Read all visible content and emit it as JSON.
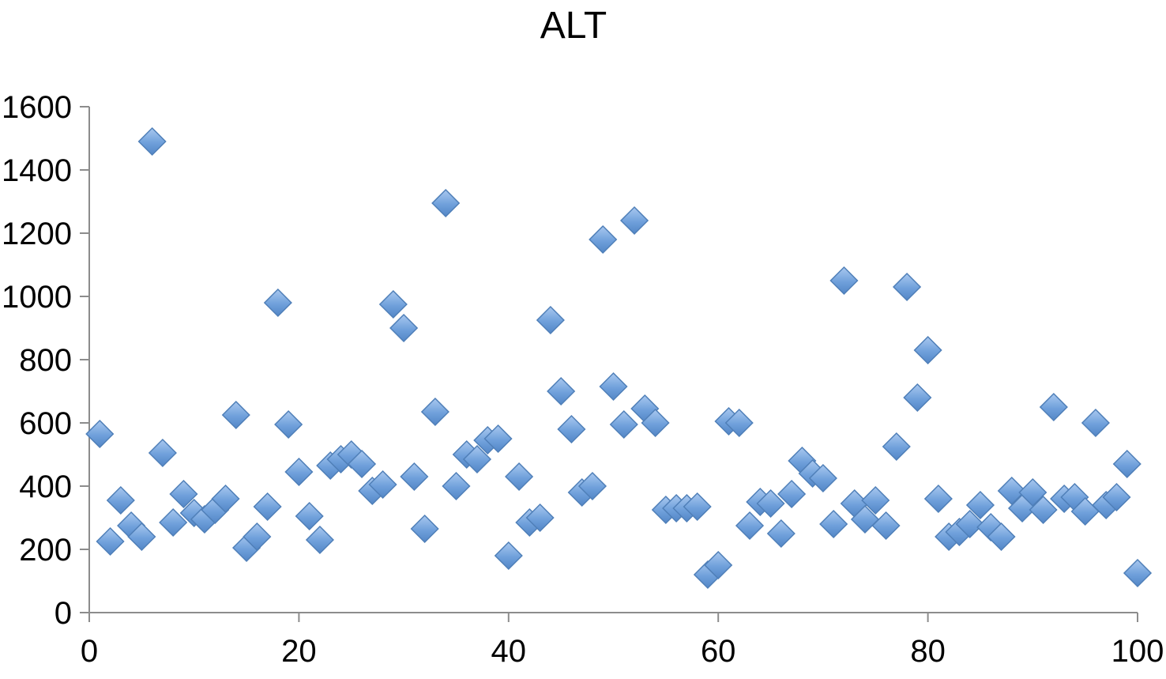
{
  "chart_data": {
    "type": "scatter",
    "title": "ALT",
    "xlabel": "",
    "ylabel": "",
    "xlim": [
      0,
      100
    ],
    "ylim": [
      0,
      1600
    ],
    "x_ticks": [
      0,
      20,
      40,
      60,
      80,
      100
    ],
    "y_ticks": [
      0,
      200,
      400,
      600,
      800,
      1000,
      1200,
      1400,
      1600
    ],
    "grid": false,
    "legend": "none",
    "marker": "diamond",
    "marker_color": "#6fa0db",
    "series": [
      {
        "x": [
          1,
          2,
          3,
          4,
          5,
          6,
          7,
          8,
          9,
          10,
          11,
          12,
          13,
          14,
          15,
          16,
          17,
          18,
          19,
          20,
          21,
          22,
          23,
          24,
          25,
          26,
          27,
          28,
          29,
          30,
          31,
          32,
          33,
          34,
          35,
          36,
          37,
          38,
          39,
          40,
          41,
          42,
          43,
          44,
          45,
          46,
          47,
          48,
          49,
          50,
          51,
          52,
          53,
          54,
          55,
          56,
          57,
          58,
          59,
          60,
          61,
          62,
          63,
          64,
          65,
          66,
          67,
          68,
          69,
          70,
          71,
          72,
          73,
          74,
          75,
          76,
          77,
          78,
          79,
          80,
          81,
          82,
          83,
          84,
          85,
          86,
          87,
          88,
          89,
          90,
          91,
          92,
          93,
          94,
          95,
          96,
          97,
          98,
          99,
          100
        ],
        "y": [
          565,
          225,
          355,
          275,
          240,
          1490,
          505,
          285,
          375,
          315,
          295,
          325,
          360,
          625,
          205,
          240,
          335,
          980,
          595,
          445,
          305,
          230,
          465,
          485,
          500,
          470,
          385,
          405,
          975,
          900,
          430,
          265,
          635,
          1295,
          400,
          500,
          485,
          545,
          550,
          180,
          430,
          285,
          300,
          925,
          700,
          580,
          380,
          400,
          1180,
          715,
          595,
          1240,
          645,
          600,
          325,
          330,
          330,
          335,
          120,
          150,
          605,
          600,
          275,
          350,
          345,
          250,
          375,
          480,
          440,
          425,
          280,
          1050,
          345,
          295,
          355,
          275,
          525,
          1030,
          680,
          830,
          360,
          240,
          255,
          280,
          340,
          270,
          240,
          385,
          330,
          380,
          325,
          650,
          360,
          365,
          320,
          600,
          340,
          365,
          470,
          125
        ]
      }
    ]
  }
}
